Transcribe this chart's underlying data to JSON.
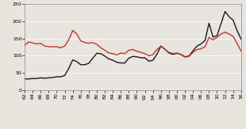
{
  "years": [
    1962,
    1963,
    1964,
    1965,
    1966,
    1967,
    1968,
    1969,
    1970,
    1971,
    1972,
    1973,
    1974,
    1975,
    1976,
    1977,
    1978,
    1979,
    1980,
    1981,
    1982,
    1983,
    1984,
    1985,
    1986,
    1987,
    1988,
    1989,
    1990,
    1991,
    1992,
    1993,
    1994,
    1995,
    1996,
    1997,
    1998,
    1999,
    2000,
    2001,
    2002,
    2003,
    2004,
    2005,
    2006,
    2007,
    2008,
    2009,
    2010,
    2011,
    2012,
    2013,
    2014,
    2015,
    2016
  ],
  "nominal": [
    33,
    33,
    34,
    34,
    36,
    35,
    36,
    37,
    39,
    39,
    43,
    63,
    88,
    83,
    74,
    74,
    78,
    93,
    107,
    106,
    99,
    91,
    87,
    81,
    79,
    79,
    93,
    98,
    97,
    94,
    94,
    84,
    87,
    104,
    128,
    119,
    108,
    104,
    107,
    104,
    97,
    99,
    114,
    128,
    134,
    144,
    194,
    154,
    158,
    193,
    228,
    213,
    203,
    173,
    148
  ],
  "deflated": [
    130,
    140,
    137,
    134,
    136,
    128,
    126,
    126,
    126,
    123,
    128,
    146,
    173,
    163,
    143,
    138,
    136,
    138,
    133,
    123,
    116,
    108,
    106,
    102,
    108,
    106,
    116,
    118,
    113,
    110,
    106,
    100,
    103,
    118,
    128,
    118,
    110,
    106,
    108,
    103,
    96,
    98,
    110,
    118,
    120,
    126,
    153,
    146,
    153,
    163,
    168,
    163,
    156,
    136,
    113
  ],
  "nominal_color": "#1a1a1a",
  "deflated_color": "#c0392b",
  "ylim": [
    0,
    250
  ],
  "yticks": [
    0,
    50,
    100,
    150,
    200,
    250
  ],
  "xtick_years": [
    1962,
    1964,
    1966,
    1968,
    1970,
    1972,
    1974,
    1976,
    1978,
    1980,
    1982,
    1984,
    1986,
    1988,
    1990,
    1992,
    1994,
    1996,
    1998,
    2000,
    2002,
    2004,
    2006,
    2008,
    2010,
    2012,
    2014,
    2016
  ],
  "bg_color": "#e8e4de",
  "plot_bg_color": "#e8e4de",
  "grid_color": "#ffffff",
  "line_width": 1.0,
  "tick_fontsize": 4.5,
  "legend_fontsize": 5.0
}
